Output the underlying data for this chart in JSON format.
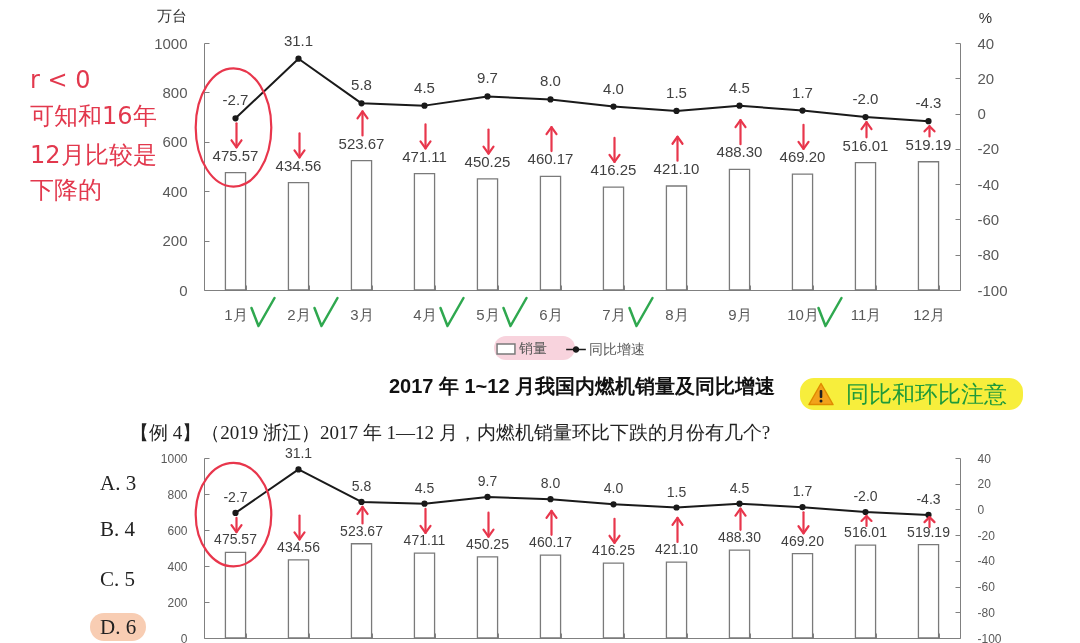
{
  "chart_data": [
    {
      "type": "bar",
      "title": "2017 年 1~12 月我国内燃机销量及同比增速",
      "ylabel": "万台",
      "y2label": "%",
      "categories": [
        "1月",
        "2月",
        "3月",
        "4月",
        "5月",
        "6月",
        "7月",
        "8月",
        "9月",
        "10月",
        "11月",
        "12月"
      ],
      "series": [
        {
          "name": "销量",
          "color": "#ffffff",
          "values": [
            475.57,
            434.56,
            523.67,
            471.11,
            450.25,
            460.17,
            416.25,
            421.1,
            488.3,
            469.2,
            516.01,
            519.19
          ],
          "value_labels": [
            "475.57",
            "434.56",
            "523.67",
            "471.11",
            "450.25",
            "460.17",
            "416.25",
            "421.10",
            "488.30",
            "469.20",
            "516.01",
            "519.19"
          ]
        },
        {
          "name": "同比增速",
          "type": "line",
          "axis": "y2",
          "color": "#1a1a1a",
          "values": [
            -2.7,
            31.1,
            5.8,
            4.5,
            9.7,
            8.0,
            4.0,
            1.5,
            4.5,
            1.7,
            -2.0,
            -4.3
          ],
          "value_labels": [
            "-2.7",
            "31.1",
            "5.8",
            "4.5",
            "9.7",
            "8.0",
            "4.0",
            "1.5",
            "4.5",
            "1.7",
            "-2.0",
            "-4.3"
          ]
        }
      ],
      "ylim": [
        0,
        1000
      ],
      "yticks": [
        0,
        200,
        400,
        600,
        800,
        1000
      ],
      "y2lim": [
        -100,
        40
      ],
      "y2ticks": [
        -100,
        -80,
        -60,
        -40,
        -20,
        0,
        20,
        40
      ],
      "legend": "bottom",
      "marker": "circle",
      "annotations": [
        "r < 0",
        "可知和16年",
        "12月比较是",
        "下降的",
        "同比和环比注意",
        "【例 4】（2019 浙江）2017 年 1—12 月，内燃机销量环比下跌的月份有几个?"
      ]
    },
    {
      "type": "bar",
      "categories": [
        null,
        null,
        null,
        null,
        null,
        null,
        null,
        null,
        null,
        null,
        null,
        null
      ],
      "series": [
        {
          "color": "#ffffff",
          "values": [
            475.57,
            434.56,
            523.67,
            471.11,
            450.25,
            460.17,
            416.25,
            421.1,
            488.3,
            469.2,
            516.01,
            519.19
          ],
          "value_labels": [
            "475.57",
            "434.56",
            "523.67",
            "471.11",
            "450.25",
            "460.17",
            "416.25",
            "421.10",
            "488.30",
            "469.20",
            "516.01",
            "519.19"
          ]
        },
        {
          "type": "line",
          "axis": "y2",
          "color": "#1a1a1a",
          "values": [
            -2.7,
            31.1,
            5.8,
            4.5,
            9.7,
            8.0,
            4.0,
            1.5,
            4.5,
            1.7,
            -2.0,
            -4.3
          ],
          "value_labels": [
            "-2.7",
            "31.1",
            "5.8",
            "4.5",
            "9.7",
            "8.0",
            "4.0",
            "1.5",
            "4.5",
            "1.7",
            "-2.0",
            "-4.3"
          ]
        }
      ],
      "ylim": [
        0,
        1000
      ],
      "yticks": [
        0,
        200,
        400,
        600,
        800,
        1000
      ],
      "y2lim": [
        -100,
        40
      ],
      "y2ticks": [
        -100,
        -80,
        -60,
        -40,
        -20,
        0,
        20,
        40
      ],
      "marker": "circle",
      "annotations": [
        "A. 3",
        "B. 4",
        "C. 5",
        "D. 6"
      ]
    }
  ]
}
